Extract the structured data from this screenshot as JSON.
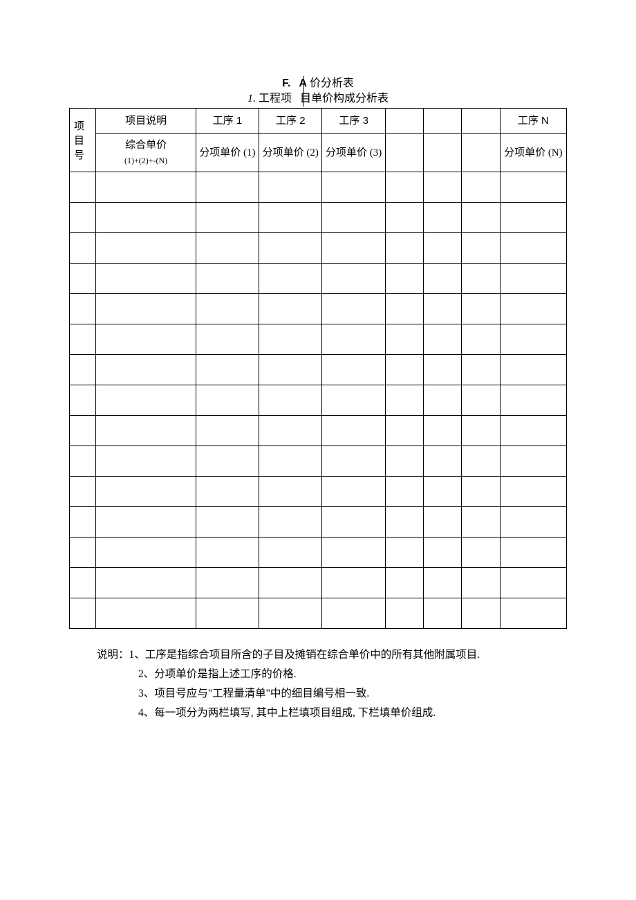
{
  "title": {
    "part_f": "F.",
    "part_a": "A",
    "suffix1": " 价分析表",
    "line2_num": "1.",
    "line2_left": " 工程项",
    "line2_right": "目单价构成分析表"
  },
  "table": {
    "row_label": "项目号",
    "columns": [
      "项目说明",
      "工序 1",
      "工序 2",
      "工序 3",
      "",
      "",
      "",
      "工序 N"
    ],
    "sub_label": "综合单价",
    "sub_formula": "(1)+(2)+-(N)",
    "subcolumns": [
      "分项单价 (1)",
      "分项单价 (2)",
      "分项单价 (3)",
      "",
      "",
      "",
      "分项单价 (N)"
    ],
    "empty_rows": 15,
    "border_color": "#000000",
    "background_color": "#ffffff",
    "font_size": 15
  },
  "notes": {
    "lead": "说明：",
    "items": [
      "1、工序是指综合项目所含的子目及摊销在综合单价中的所有其他附属项目.",
      "2、分项单价是指上述工序的价格.",
      "3、项目号应与\"工程量清单\"中的细目编号相一致.",
      "4、每一项分为两栏填写, 其中上栏填项目组成, 下栏填单价组成."
    ]
  }
}
